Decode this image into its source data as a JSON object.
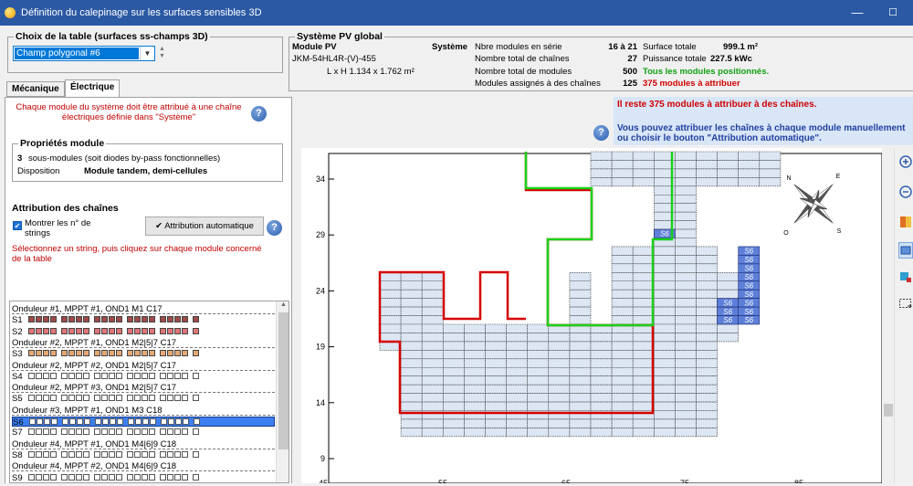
{
  "window": {
    "title": "Définition du calepinage sur les surfaces sensibles 3D",
    "minimize": "—",
    "maximize": "☐"
  },
  "table_choice": {
    "label": "Choix de la table  (surfaces ss-champs 3D)",
    "selected": "Champ polygonal #6"
  },
  "pv_system": {
    "label": "Système PV global",
    "module_header": "Module PV",
    "module_model": "JKM-54HL4R-(V)-455",
    "module_dims": "L x H 1.134 x 1.762 m²",
    "system_header": "Système",
    "rows": [
      {
        "label": "Nbre modules en série",
        "value": "16 à 21"
      },
      {
        "label": "Nombre total de chaînes",
        "value": "27"
      },
      {
        "label": "Nombre total de modules",
        "value": "500"
      },
      {
        "label": "Modules assignés à des chaînes",
        "value": "125"
      }
    ],
    "surface_label": "Surface totale",
    "surface_value": "999.1 m²",
    "power_label": "Puissance totale",
    "power_value": "227.5 kWc",
    "status_ok": "Tous les modules positionnés.",
    "status_left": "375 modules à attribuer"
  },
  "tabs": [
    {
      "label": "Mécanique",
      "active": false
    },
    {
      "label": "Électrique",
      "active": true
    }
  ],
  "electrical": {
    "intro": "Chaque module du système doit être attribué à une chaîne électriques définie dans \"Système\"",
    "module_props": {
      "label": "Propriétés module",
      "submodules_count": "3",
      "submodules_text": "sous-modules (soit diodes by-pass fonctionnelles)",
      "disposition_label": "Disposition",
      "disposition_value": "Module tandem, demi-cellules"
    },
    "strings_header": "Attribution des chaînes",
    "show_numbers_label": "Montrer les n° de strings",
    "auto_button": "Attribution automatique",
    "instruction": "Sélectionnez un string, puis cliquez sur chaque module concerné de la table"
  },
  "string_list": [
    {
      "type": "inv",
      "text": "Onduleur #1, MPPT #1, OND1 M1 C17"
    },
    {
      "type": "str",
      "name": "S1",
      "color": "#a04a4a",
      "filled": true
    },
    {
      "type": "str",
      "name": "S2",
      "color": "#e07575",
      "filled": true
    },
    {
      "type": "inv",
      "text": "Onduleur #2, MPPT #1, OND1 M2|5|7 C17"
    },
    {
      "type": "str",
      "name": "S3",
      "color": "#e6a872",
      "filled": true
    },
    {
      "type": "inv",
      "text": "Onduleur #2, MPPT #2, OND1 M2|5|7 C17"
    },
    {
      "type": "str",
      "name": "S4",
      "color": "#ffffff",
      "filled": false
    },
    {
      "type": "inv",
      "text": "Onduleur #2, MPPT #3, OND1 M2|5|7 C17"
    },
    {
      "type": "str",
      "name": "S5",
      "color": "#ffffff",
      "filled": false
    },
    {
      "type": "inv",
      "text": "Onduleur #3, MPPT #1, OND1 M3 C18"
    },
    {
      "type": "str",
      "name": "S6",
      "color": "#ffffff",
      "filled": false,
      "selected": true
    },
    {
      "type": "str",
      "name": "S7",
      "color": "#ffffff",
      "filled": false
    },
    {
      "type": "inv",
      "text": "Onduleur #4, MPPT #1, OND1 M4|6|9 C18"
    },
    {
      "type": "str",
      "name": "S8",
      "color": "#ffffff",
      "filled": false
    },
    {
      "type": "inv",
      "text": "Onduleur #4, MPPT #2, OND1 M4|6|9 C18"
    },
    {
      "type": "str",
      "name": "S9",
      "color": "#ffffff",
      "filled": false
    }
  ],
  "message": {
    "line1": "Il reste 375 modules à attribuer à des chaînes.",
    "line2": "Vous pouvez attribuer les chaînes à chaque module manuellement",
    "line3": "ou choisir le bouton \"Attribution automatique\"."
  },
  "plot": {
    "y_ticks": [
      34,
      29,
      24,
      19,
      14,
      9
    ],
    "x_ticks": [
      "45",
      "55",
      "65",
      "75",
      "85"
    ],
    "cell_label": "S6",
    "compass": {
      "n": "N",
      "e": "E",
      "s": "S",
      "o": "O"
    },
    "colors": {
      "module_fill": "#dde6f3",
      "s6_fill": "#5d7fd8",
      "red_outline": "#d40000",
      "green_outline": "#1ad11a"
    }
  }
}
